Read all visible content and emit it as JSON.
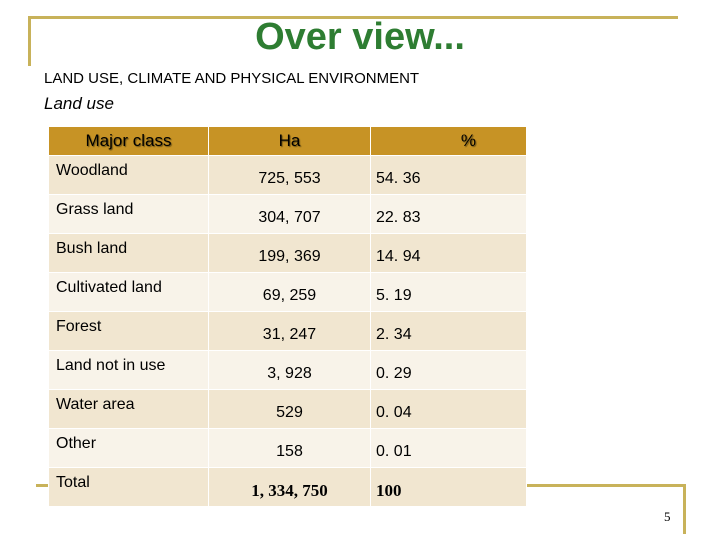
{
  "slide": {
    "title": "Over view...",
    "subtitle": "LAND USE, CLIMATE AND PHYSICAL ENVIRONMENT",
    "section": "Land use",
    "page_number": "5"
  },
  "table": {
    "headers": [
      "Major class",
      "Ha",
      "%"
    ],
    "rows": [
      {
        "cls": "Woodland",
        "ha": "725, 553",
        "pct": "54. 36"
      },
      {
        "cls": "Grass land",
        "ha": "304, 707",
        "pct": "22. 83"
      },
      {
        "cls": "Bush land",
        "ha": "199, 369",
        "pct": "14. 94"
      },
      {
        "cls": "Cultivated land",
        "ha": "69, 259",
        "pct": "5. 19"
      },
      {
        "cls": "Forest",
        "ha": "31, 247",
        "pct": "2. 34"
      },
      {
        "cls": "Land not in use",
        "ha": "3, 928",
        "pct": "0. 29"
      },
      {
        "cls": "Water area",
        "ha": "529",
        "pct": "0. 04"
      },
      {
        "cls": "Other",
        "ha": "158",
        "pct": "0. 01"
      },
      {
        "cls": "Total",
        "ha": "1, 334, 750",
        "pct": "100"
      }
    ]
  },
  "colors": {
    "title": "#2e7d32",
    "frame": "#c8b25a",
    "header_bg": "#c79325",
    "row_odd": "#f1e6d0",
    "row_even": "#f8f3e9"
  }
}
